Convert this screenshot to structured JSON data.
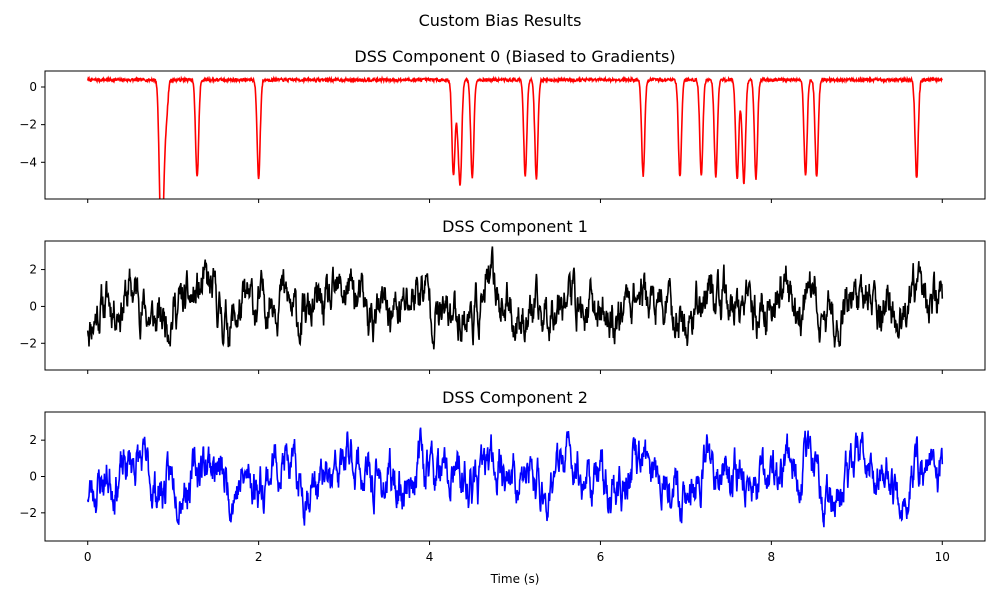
{
  "figure": {
    "suptitle": "Custom Bias Results"
  },
  "chart_data": [
    {
      "type": "line",
      "title": "DSS Component 0 (Biased to Gradients)",
      "xlabel": "",
      "ylabel": "",
      "color": "#ff0000",
      "xlim": [
        -0.5,
        10.5
      ],
      "ylim": [
        -5.95,
        0.85
      ],
      "yticks": [
        0,
        -2,
        -4
      ],
      "xticks": [
        0,
        2,
        4,
        6,
        8,
        10
      ],
      "show_xtick_labels": false,
      "baseline": 0.38,
      "noise_amplitude": 0.08,
      "dips": [
        {
          "t": 0.85,
          "depth": -5.6
        },
        {
          "t": 0.88,
          "depth": -5.5
        },
        {
          "t": 0.92,
          "depth": -1.6
        },
        {
          "t": 1.28,
          "depth": -4.8
        },
        {
          "t": 2.0,
          "depth": -4.85
        },
        {
          "t": 4.28,
          "depth": -4.7
        },
        {
          "t": 4.33,
          "depth": -1.5
        },
        {
          "t": 4.36,
          "depth": -4.7
        },
        {
          "t": 4.5,
          "depth": -4.85
        },
        {
          "t": 5.12,
          "depth": -4.7
        },
        {
          "t": 5.25,
          "depth": -4.85
        },
        {
          "t": 6.5,
          "depth": -4.7
        },
        {
          "t": 6.93,
          "depth": -4.75
        },
        {
          "t": 7.18,
          "depth": -4.7
        },
        {
          "t": 7.35,
          "depth": -4.75
        },
        {
          "t": 7.6,
          "depth": -4.85
        },
        {
          "t": 7.65,
          "depth": -0.5
        },
        {
          "t": 7.68,
          "depth": -4.9
        },
        {
          "t": 7.82,
          "depth": -4.85
        },
        {
          "t": 8.4,
          "depth": -4.75
        },
        {
          "t": 8.53,
          "depth": -4.75
        },
        {
          "t": 9.7,
          "depth": -4.85
        }
      ]
    },
    {
      "type": "line",
      "title": "DSS Component 1",
      "xlabel": "",
      "ylabel": "",
      "color": "#000000",
      "xlim": [
        -0.5,
        10.5
      ],
      "ylim": [
        -3.45,
        3.55
      ],
      "yticks": [
        2,
        0,
        -2
      ],
      "xticks": [
        0,
        2,
        4,
        6,
        8,
        10
      ],
      "show_xtick_labels": false,
      "signal_range": [
        -3.0,
        3.4
      ]
    },
    {
      "type": "line",
      "title": "DSS Component 2",
      "xlabel": "Time (s)",
      "ylabel": "",
      "color": "#0000ff",
      "xlim": [
        -0.5,
        10.5
      ],
      "ylim": [
        -3.55,
        3.55
      ],
      "yticks": [
        2,
        0,
        -2
      ],
      "xticks": [
        0,
        2,
        4,
        6,
        8,
        10
      ],
      "show_xtick_labels": true,
      "signal_range": [
        -3.3,
        3.2
      ]
    }
  ]
}
